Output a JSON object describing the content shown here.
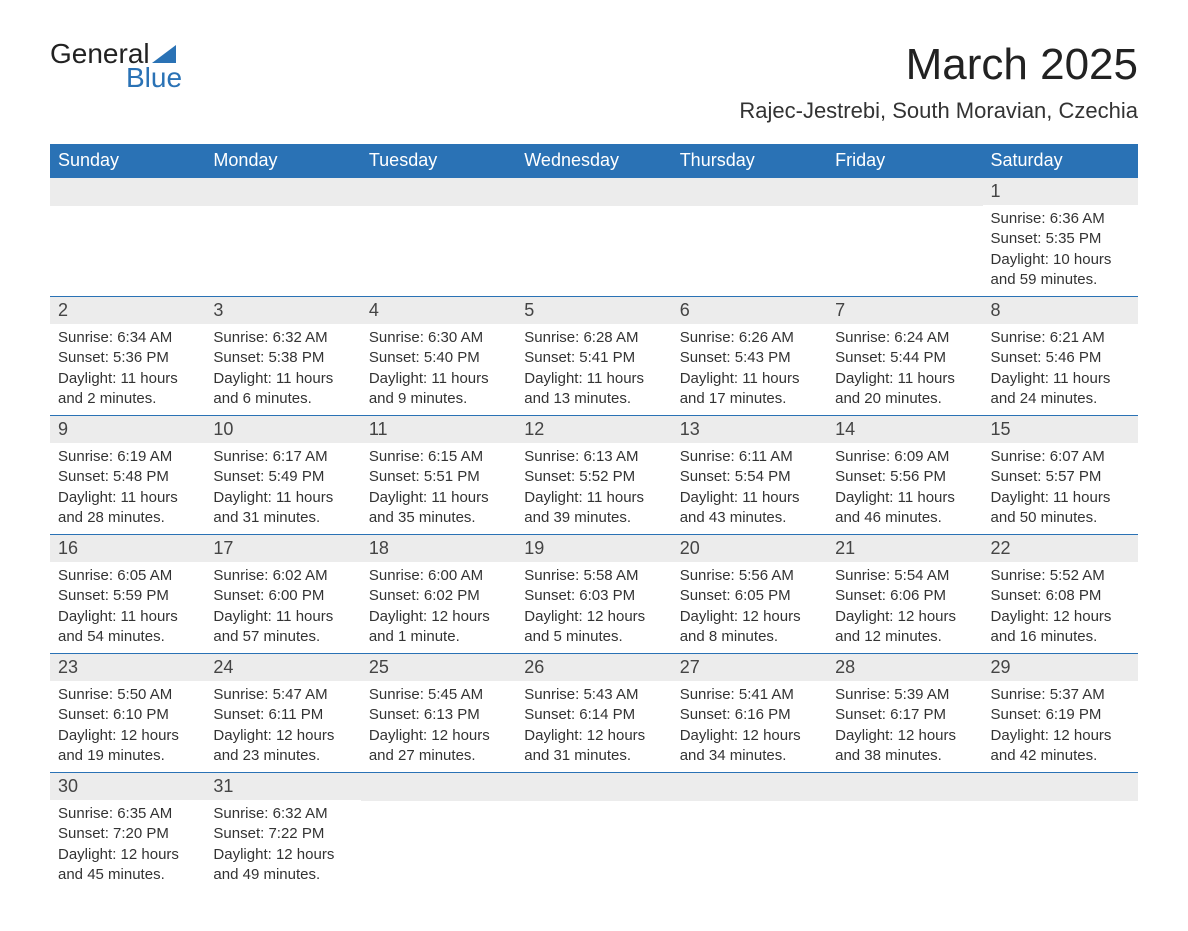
{
  "logo": {
    "text_top": "General",
    "text_bottom": "Blue",
    "triangle_color": "#2a72b5"
  },
  "title": "March 2025",
  "location": "Rajec-Jestrebi, South Moravian, Czechia",
  "header_bg": "#2a72b5",
  "header_fg": "#ffffff",
  "daynum_bg": "#ececec",
  "border_color": "#2a72b5",
  "days_of_week": [
    "Sunday",
    "Monday",
    "Tuesday",
    "Wednesday",
    "Thursday",
    "Friday",
    "Saturday"
  ],
  "weeks": [
    [
      null,
      null,
      null,
      null,
      null,
      null,
      {
        "n": "1",
        "sunrise": "6:36 AM",
        "sunset": "5:35 PM",
        "daylight": "10 hours and 59 minutes."
      }
    ],
    [
      {
        "n": "2",
        "sunrise": "6:34 AM",
        "sunset": "5:36 PM",
        "daylight": "11 hours and 2 minutes."
      },
      {
        "n": "3",
        "sunrise": "6:32 AM",
        "sunset": "5:38 PM",
        "daylight": "11 hours and 6 minutes."
      },
      {
        "n": "4",
        "sunrise": "6:30 AM",
        "sunset": "5:40 PM",
        "daylight": "11 hours and 9 minutes."
      },
      {
        "n": "5",
        "sunrise": "6:28 AM",
        "sunset": "5:41 PM",
        "daylight": "11 hours and 13 minutes."
      },
      {
        "n": "6",
        "sunrise": "6:26 AM",
        "sunset": "5:43 PM",
        "daylight": "11 hours and 17 minutes."
      },
      {
        "n": "7",
        "sunrise": "6:24 AM",
        "sunset": "5:44 PM",
        "daylight": "11 hours and 20 minutes."
      },
      {
        "n": "8",
        "sunrise": "6:21 AM",
        "sunset": "5:46 PM",
        "daylight": "11 hours and 24 minutes."
      }
    ],
    [
      {
        "n": "9",
        "sunrise": "6:19 AM",
        "sunset": "5:48 PM",
        "daylight": "11 hours and 28 minutes."
      },
      {
        "n": "10",
        "sunrise": "6:17 AM",
        "sunset": "5:49 PM",
        "daylight": "11 hours and 31 minutes."
      },
      {
        "n": "11",
        "sunrise": "6:15 AM",
        "sunset": "5:51 PM",
        "daylight": "11 hours and 35 minutes."
      },
      {
        "n": "12",
        "sunrise": "6:13 AM",
        "sunset": "5:52 PM",
        "daylight": "11 hours and 39 minutes."
      },
      {
        "n": "13",
        "sunrise": "6:11 AM",
        "sunset": "5:54 PM",
        "daylight": "11 hours and 43 minutes."
      },
      {
        "n": "14",
        "sunrise": "6:09 AM",
        "sunset": "5:56 PM",
        "daylight": "11 hours and 46 minutes."
      },
      {
        "n": "15",
        "sunrise": "6:07 AM",
        "sunset": "5:57 PM",
        "daylight": "11 hours and 50 minutes."
      }
    ],
    [
      {
        "n": "16",
        "sunrise": "6:05 AM",
        "sunset": "5:59 PM",
        "daylight": "11 hours and 54 minutes."
      },
      {
        "n": "17",
        "sunrise": "6:02 AM",
        "sunset": "6:00 PM",
        "daylight": "11 hours and 57 minutes."
      },
      {
        "n": "18",
        "sunrise": "6:00 AM",
        "sunset": "6:02 PM",
        "daylight": "12 hours and 1 minute."
      },
      {
        "n": "19",
        "sunrise": "5:58 AM",
        "sunset": "6:03 PM",
        "daylight": "12 hours and 5 minutes."
      },
      {
        "n": "20",
        "sunrise": "5:56 AM",
        "sunset": "6:05 PM",
        "daylight": "12 hours and 8 minutes."
      },
      {
        "n": "21",
        "sunrise": "5:54 AM",
        "sunset": "6:06 PM",
        "daylight": "12 hours and 12 minutes."
      },
      {
        "n": "22",
        "sunrise": "5:52 AM",
        "sunset": "6:08 PM",
        "daylight": "12 hours and 16 minutes."
      }
    ],
    [
      {
        "n": "23",
        "sunrise": "5:50 AM",
        "sunset": "6:10 PM",
        "daylight": "12 hours and 19 minutes."
      },
      {
        "n": "24",
        "sunrise": "5:47 AM",
        "sunset": "6:11 PM",
        "daylight": "12 hours and 23 minutes."
      },
      {
        "n": "25",
        "sunrise": "5:45 AM",
        "sunset": "6:13 PM",
        "daylight": "12 hours and 27 minutes."
      },
      {
        "n": "26",
        "sunrise": "5:43 AM",
        "sunset": "6:14 PM",
        "daylight": "12 hours and 31 minutes."
      },
      {
        "n": "27",
        "sunrise": "5:41 AM",
        "sunset": "6:16 PM",
        "daylight": "12 hours and 34 minutes."
      },
      {
        "n": "28",
        "sunrise": "5:39 AM",
        "sunset": "6:17 PM",
        "daylight": "12 hours and 38 minutes."
      },
      {
        "n": "29",
        "sunrise": "5:37 AM",
        "sunset": "6:19 PM",
        "daylight": "12 hours and 42 minutes."
      }
    ],
    [
      {
        "n": "30",
        "sunrise": "6:35 AM",
        "sunset": "7:20 PM",
        "daylight": "12 hours and 45 minutes."
      },
      {
        "n": "31",
        "sunrise": "6:32 AM",
        "sunset": "7:22 PM",
        "daylight": "12 hours and 49 minutes."
      },
      null,
      null,
      null,
      null,
      null
    ]
  ],
  "labels": {
    "sunrise": "Sunrise:",
    "sunset": "Sunset:",
    "daylight": "Daylight:"
  }
}
